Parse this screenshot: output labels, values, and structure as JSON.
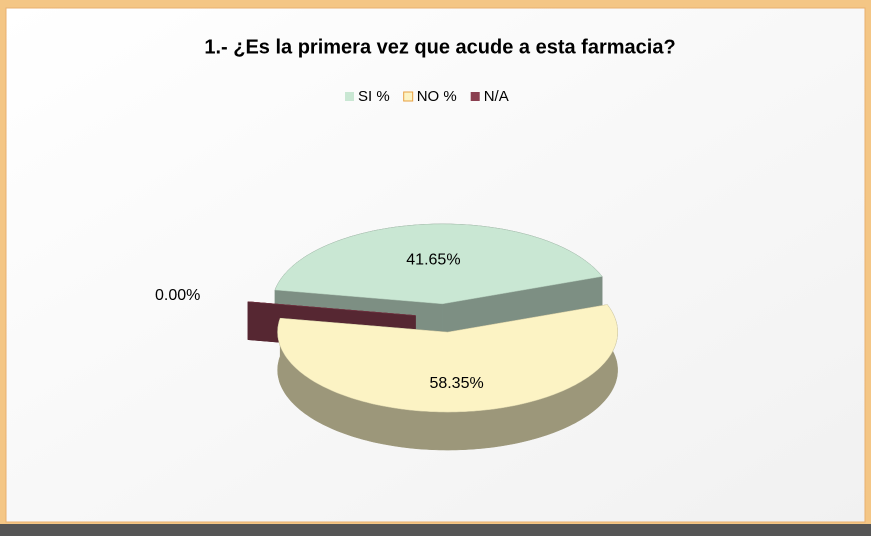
{
  "chart_data": {
    "type": "pie",
    "title": "1.- ¿Es la primera vez que acude a esta farmacia?",
    "categories": [
      "SI %",
      "NO %",
      "N/A"
    ],
    "values": [
      41.65,
      58.35,
      0.0
    ],
    "value_labels": [
      "41.65%",
      "58.35%",
      "0.00%"
    ],
    "colors": [
      "#c9e7d3",
      "#fcf3c4",
      "#8a3f50"
    ],
    "legend": "top"
  }
}
